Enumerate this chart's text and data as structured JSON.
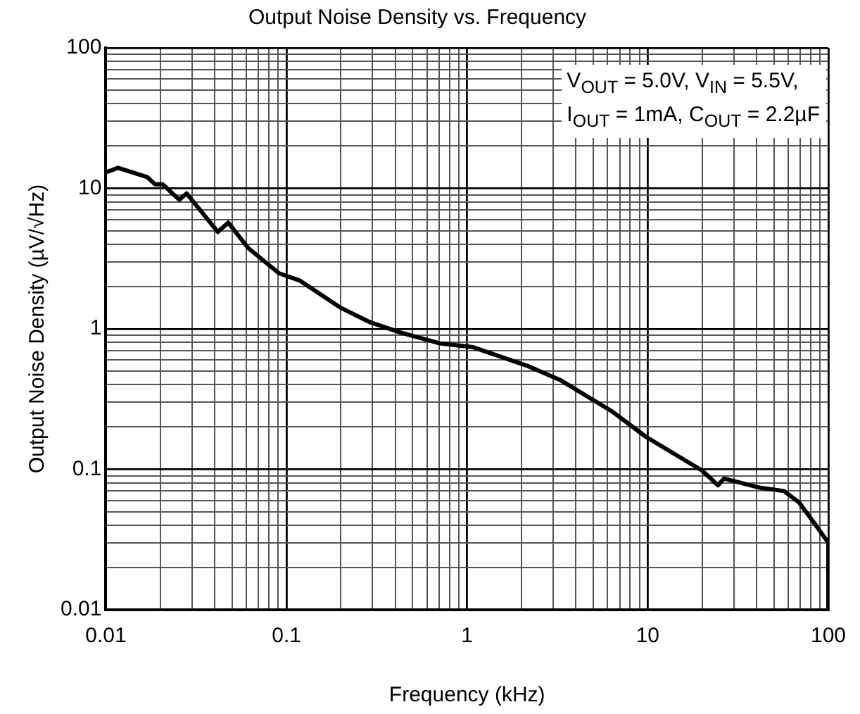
{
  "chart_data": {
    "type": "line",
    "title": "Output Noise Density vs. Frequency",
    "xlabel": "Frequency (kHz)",
    "ylabel": "Output Noise Density (µV/√Hz)",
    "annotations": [
      "V$_{OUT}$ = 5.0V, V$_{IN}$ = 5.5V,",
      "I$_{OUT}$ = 1mA, C$_{OUT}$ = 2.2µF"
    ],
    "log": "xy",
    "grid": true,
    "legend": false,
    "marker": "none",
    "line_style": "solid",
    "xlim": [
      0.01,
      100
    ],
    "ylim": [
      0.01,
      100
    ],
    "xticks": [
      0.01,
      {
        "value": 0.02,
        "label": null
      },
      {
        "value": 0.03,
        "label": null
      },
      {
        "value": 0.04,
        "label": null
      },
      {
        "value": 0.05,
        "label": null
      },
      {
        "value": 0.06,
        "label": null
      },
      {
        "value": 0.07,
        "label": null
      },
      {
        "value": 0.08,
        "label": null
      },
      {
        "value": 0.09,
        "label": null
      },
      0.1,
      {
        "value": 0.2,
        "label": null
      },
      {
        "value": 0.3,
        "label": null
      },
      {
        "value": 0.4,
        "label": null
      },
      {
        "value": 0.5,
        "label": null
      },
      {
        "value": 0.6,
        "label": null
      },
      {
        "value": 0.7,
        "label": null
      },
      {
        "value": 0.8,
        "label": null
      },
      {
        "value": 0.9,
        "label": null
      },
      1,
      {
        "value": 2,
        "label": null
      },
      {
        "value": 3,
        "label": null
      },
      {
        "value": 4,
        "label": null
      },
      {
        "value": 5,
        "label": null
      },
      {
        "value": 6,
        "label": null
      },
      {
        "value": 7,
        "label": null
      },
      {
        "value": 8,
        "label": null
      },
      {
        "value": 9,
        "label": null
      },
      10,
      {
        "value": 20,
        "label": null
      },
      {
        "value": 30,
        "label": null
      },
      {
        "value": 40,
        "label": null
      },
      {
        "value": 50,
        "label": null
      },
      {
        "value": 60,
        "label": null
      },
      {
        "value": 70,
        "label": null
      },
      {
        "value": 80,
        "label": null
      },
      {
        "value": 90,
        "label": null
      },
      100
    ],
    "yticks": [
      0.01,
      {
        "value": 0.02,
        "label": null
      },
      {
        "value": 0.03,
        "label": null
      },
      {
        "value": 0.04,
        "label": null
      },
      {
        "value": 0.05,
        "label": null
      },
      {
        "value": 0.06,
        "label": null
      },
      {
        "value": 0.07,
        "label": null
      },
      {
        "value": 0.08,
        "label": null
      },
      {
        "value": 0.09,
        "label": null
      },
      0.1,
      {
        "value": 0.2,
        "label": null
      },
      {
        "value": 0.3,
        "label": null
      },
      {
        "value": 0.4,
        "label": null
      },
      {
        "value": 0.5,
        "label": null
      },
      {
        "value": 0.6,
        "label": null
      },
      {
        "value": 0.7,
        "label": null
      },
      {
        "value": 0.8,
        "label": null
      },
      {
        "value": 0.9,
        "label": null
      },
      1,
      {
        "value": 2,
        "label": null
      },
      {
        "value": 3,
        "label": null
      },
      {
        "value": 4,
        "label": null
      },
      {
        "value": 5,
        "label": null
      },
      {
        "value": 6,
        "label": null
      },
      {
        "value": 7,
        "label": null
      },
      {
        "value": 8,
        "label": null
      },
      {
        "value": 9,
        "label": null
      },
      10,
      {
        "value": 20,
        "label": null
      },
      {
        "value": 30,
        "label": null
      },
      {
        "value": 40,
        "label": null
      },
      {
        "value": 50,
        "label": null
      },
      {
        "value": 60,
        "label": null
      },
      {
        "value": 70,
        "label": null
      },
      {
        "value": 80,
        "label": null
      },
      {
        "value": 90,
        "label": null
      },
      100
    ],
    "x": [
      0.01,
      0.0117,
      0.017,
      0.0187,
      0.0206,
      0.0255,
      0.028,
      0.0417,
      0.0476,
      0.0614,
      0.0908,
      0.119,
      0.198,
      0.292,
      0.43,
      0.7,
      1.08,
      2.2,
      3.3,
      6.3,
      9.8,
      20,
      24.5,
      26.5,
      41.7,
      56.8,
      69,
      83,
      100,
      100
    ],
    "series": [
      {
        "color": "#000000",
        "values": [
          13,
          14,
          12,
          10.7,
          10.7,
          8.3,
          9.2,
          4.9,
          5.7,
          3.76,
          2.49,
          2.2,
          1.42,
          1.11,
          0.94,
          0.79,
          0.74,
          0.54,
          0.43,
          0.26,
          0.17,
          0.098,
          0.077,
          0.086,
          0.074,
          0.07,
          0.058,
          0.042,
          0.03,
          0.01
        ]
      }
    ]
  }
}
